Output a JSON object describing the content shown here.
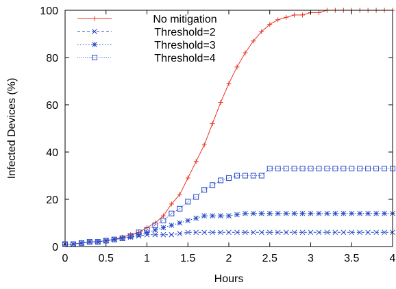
{
  "chart_data": {
    "type": "line",
    "title": "",
    "xlabel": "Hours",
    "ylabel": "Infected Devices (%)",
    "xlim": [
      0,
      4
    ],
    "ylim": [
      0,
      100
    ],
    "grid": false,
    "legend_position": "top-left",
    "x_ticks": [
      0,
      0.5,
      1,
      1.5,
      2,
      2.5,
      3,
      3.5,
      4
    ],
    "x_tick_labels": [
      "0",
      "0.5",
      "1",
      "1.5",
      "2",
      "2.5",
      "3",
      "3.5",
      "4"
    ],
    "y_ticks": [
      0,
      20,
      40,
      60,
      80,
      100
    ],
    "y_tick_labels": [
      "0",
      "20",
      "40",
      "60",
      "80",
      "100"
    ],
    "x": [
      0,
      0.1,
      0.2,
      0.3,
      0.4,
      0.5,
      0.6,
      0.7,
      0.8,
      0.9,
      1.0,
      1.1,
      1.2,
      1.3,
      1.4,
      1.5,
      1.6,
      1.7,
      1.8,
      1.9,
      2.0,
      2.1,
      2.2,
      2.3,
      2.4,
      2.5,
      2.6,
      2.7,
      2.8,
      2.9,
      3.0,
      3.1,
      3.2,
      3.3,
      3.4,
      3.5,
      3.6,
      3.7,
      3.8,
      3.9,
      4.0
    ],
    "series": [
      {
        "name": "No mitigation",
        "color": "#e8321e",
        "marker": "plus",
        "dash": "solid",
        "values": [
          1,
          1,
          1.5,
          2,
          2,
          2.5,
          3,
          4,
          5,
          6,
          8,
          10,
          13,
          18,
          22,
          29,
          36,
          43,
          52,
          61,
          69,
          76,
          82,
          87,
          91,
          94,
          96,
          97,
          98,
          98,
          99,
          99,
          100,
          100,
          100,
          100,
          100,
          100,
          100,
          100,
          100
        ]
      },
      {
        "name": "Threshold=2",
        "color": "#2448c8",
        "marker": "x",
        "dash": "dashed",
        "values": [
          1,
          1,
          1.5,
          2,
          2,
          2.5,
          3,
          3.5,
          4,
          4.5,
          5,
          5,
          5,
          5,
          5.5,
          6,
          6,
          6,
          6,
          6,
          6,
          6,
          6,
          6,
          6,
          6,
          6,
          6,
          6,
          6,
          6,
          6,
          6,
          6,
          6,
          6,
          6,
          6,
          6,
          6,
          6
        ]
      },
      {
        "name": "Threshold=3",
        "color": "#2448c8",
        "marker": "star",
        "dash": "dotted",
        "values": [
          1,
          1,
          1.5,
          2,
          2,
          2.5,
          3,
          3.5,
          4,
          5,
          6,
          7,
          8,
          9,
          10,
          11,
          12,
          13,
          13,
          13,
          13,
          13.5,
          14,
          14,
          14,
          14,
          14,
          14,
          14,
          14,
          14,
          14,
          14,
          14,
          14,
          14,
          14,
          14,
          14,
          14,
          14
        ]
      },
      {
        "name": "Threshold=4",
        "color": "#2448c8",
        "marker": "square",
        "dash": "dotted-fine",
        "values": [
          1,
          1,
          1.5,
          2,
          2,
          2.5,
          3,
          3.5,
          4.5,
          6,
          7,
          9,
          11,
          14,
          16,
          19,
          21,
          24,
          26,
          28,
          29,
          30,
          30,
          30,
          30,
          33,
          33,
          33,
          33,
          33,
          33,
          33,
          33,
          33,
          33,
          33,
          33,
          33,
          33,
          33,
          33
        ]
      }
    ]
  }
}
